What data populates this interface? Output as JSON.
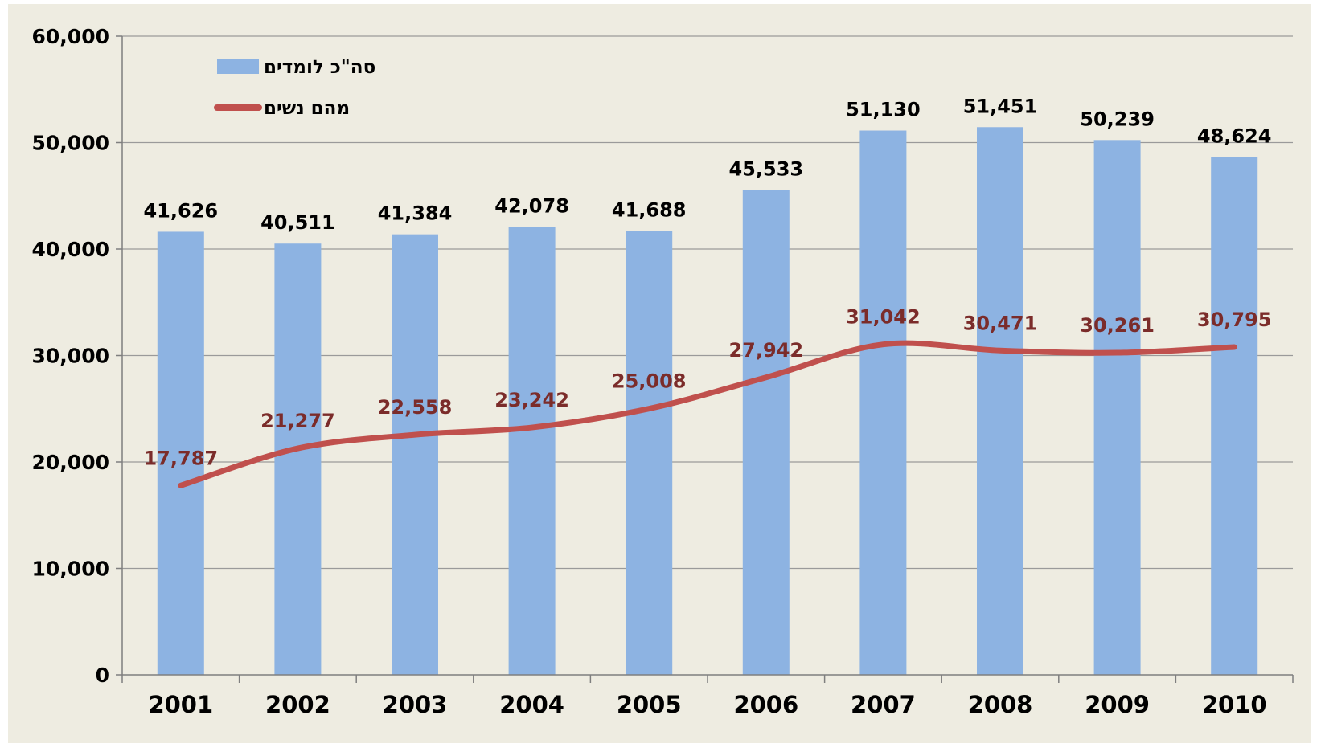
{
  "chart_data": {
    "type": "bar",
    "categories": [
      "2001",
      "2002",
      "2003",
      "2004",
      "2005",
      "2006",
      "2007",
      "2008",
      "2009",
      "2010"
    ],
    "series": [
      {
        "name": "סה\"כ לומדים",
        "kind": "bar",
        "color": "#8DB3E2",
        "values": [
          41626,
          40511,
          41384,
          42078,
          41688,
          45533,
          51130,
          51451,
          50239,
          48624
        ],
        "labels": [
          "41,626",
          "40,511",
          "41,384",
          "42,078",
          "41,688",
          "45,533",
          "51,130",
          "51,451",
          "50,239",
          "48,624"
        ]
      },
      {
        "name": "מהם נשים",
        "kind": "line",
        "color": "#C0504D",
        "label_color": "#7B2C2A",
        "values": [
          17787,
          21277,
          22558,
          23242,
          25008,
          27942,
          31042,
          30471,
          30261,
          30795
        ],
        "labels": [
          "17,787",
          "21,277",
          "22,558",
          "23,242",
          "25,008",
          "27,942",
          "31,042",
          "30,471",
          "30,261",
          "30,795"
        ]
      }
    ],
    "ylim": [
      0,
      60000
    ],
    "yticks": [
      0,
      10000,
      20000,
      30000,
      40000,
      50000,
      60000
    ],
    "ytick_labels": [
      "0",
      "10,000",
      "20,000",
      "30,000",
      "40,000",
      "50,000",
      "60,000"
    ],
    "grid": true,
    "legend_position": "top-left",
    "background_color": "#EEECE1"
  }
}
